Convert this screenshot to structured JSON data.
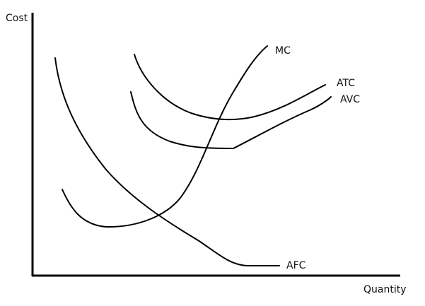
{
  "axes": {
    "y_label": "Cost",
    "x_label": "Quantity"
  },
  "curves": [
    {
      "label": "MC"
    },
    {
      "label": "ATC"
    },
    {
      "label": "AVC"
    },
    {
      "label": "AFC"
    }
  ]
}
